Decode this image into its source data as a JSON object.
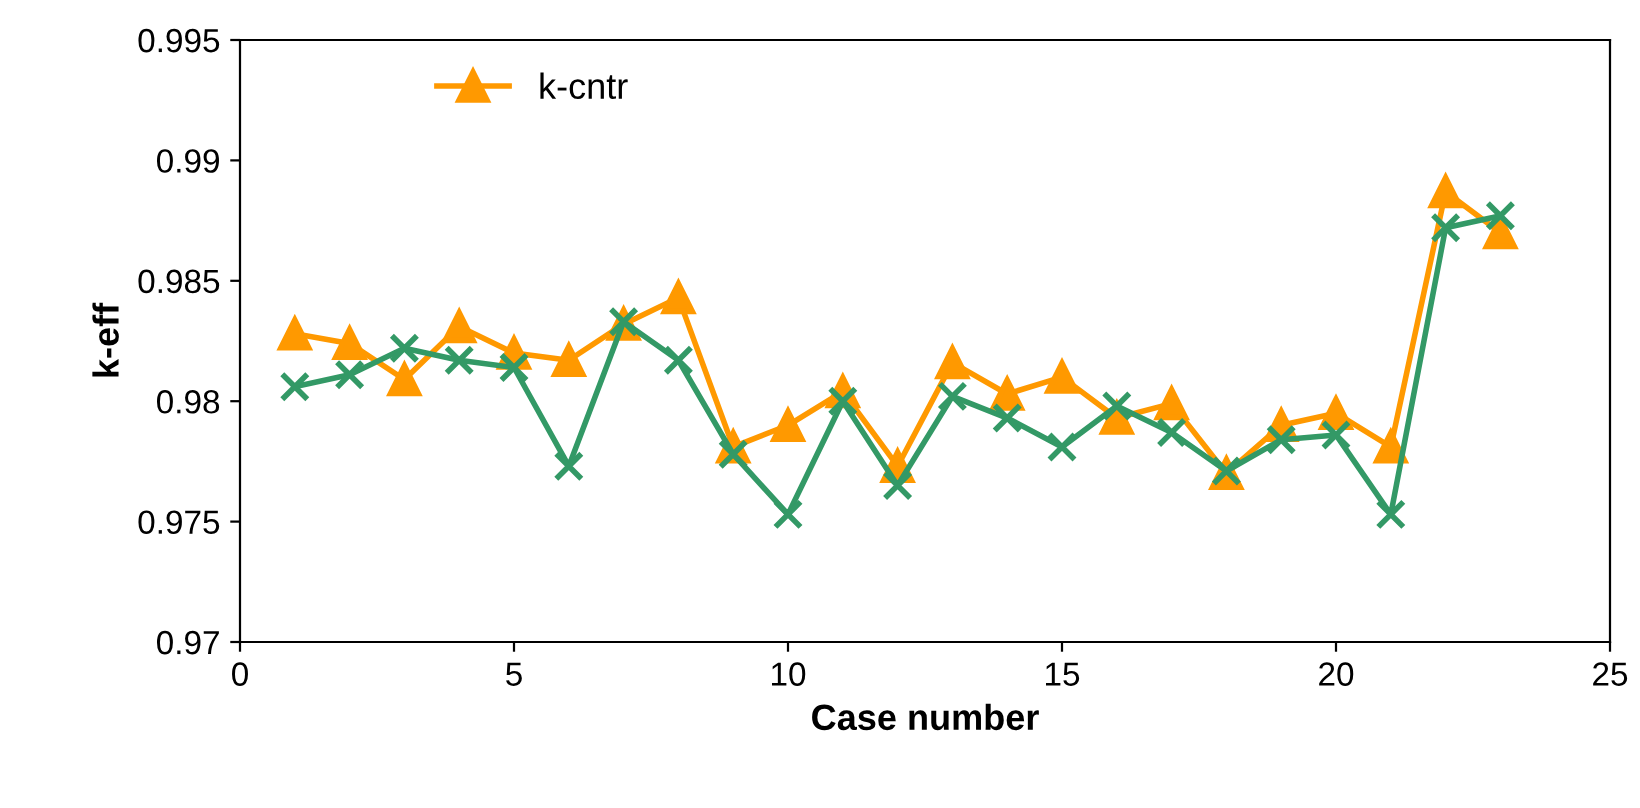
{
  "chart_data": {
    "type": "line",
    "xlabel": "Case number",
    "ylabel": "k-eff",
    "x": [
      1,
      2,
      3,
      4,
      5,
      6,
      7,
      8,
      9,
      10,
      11,
      12,
      13,
      14,
      15,
      16,
      17,
      18,
      19,
      20,
      21,
      22,
      23
    ],
    "series": [
      {
        "name": "k-cntr",
        "color": "#ff9900",
        "marker": "triangle",
        "values": [
          0.9828,
          0.9824,
          0.9809,
          0.9831,
          0.982,
          0.9817,
          0.9832,
          0.9843,
          0.9781,
          0.979,
          0.9804,
          0.9773,
          0.9816,
          0.9803,
          0.981,
          0.9793,
          0.9799,
          0.977,
          0.979,
          0.9795,
          0.9781,
          0.9887,
          0.987
        ]
      },
      {
        "color": "#339966",
        "marker": "cross",
        "values": [
          0.9806,
          0.9811,
          0.9822,
          0.9817,
          0.9814,
          0.9773,
          0.9833,
          0.9817,
          0.9778,
          0.9753,
          0.98,
          0.9765,
          0.9802,
          0.9793,
          0.9781,
          0.9798,
          0.9787,
          0.9771,
          0.9784,
          0.9786,
          0.9753,
          0.9872,
          0.9877
        ]
      }
    ],
    "xlim": [
      0,
      25
    ],
    "xticks": [
      0,
      5,
      10,
      15,
      20,
      25
    ],
    "ylim": [
      0.97,
      0.995
    ],
    "yticks": [
      {
        "value": 0.97,
        "label": "0.97"
      },
      {
        "value": 0.975,
        "label": "0.975"
      },
      {
        "value": 0.98,
        "label": "0.98"
      },
      {
        "value": 0.985,
        "label": "0.985"
      },
      {
        "value": 0.99,
        "label": "0.99"
      },
      {
        "value": 0.995,
        "label": "0.995"
      }
    ],
    "grid": false,
    "legend": "top left",
    "line_style": "solid"
  }
}
